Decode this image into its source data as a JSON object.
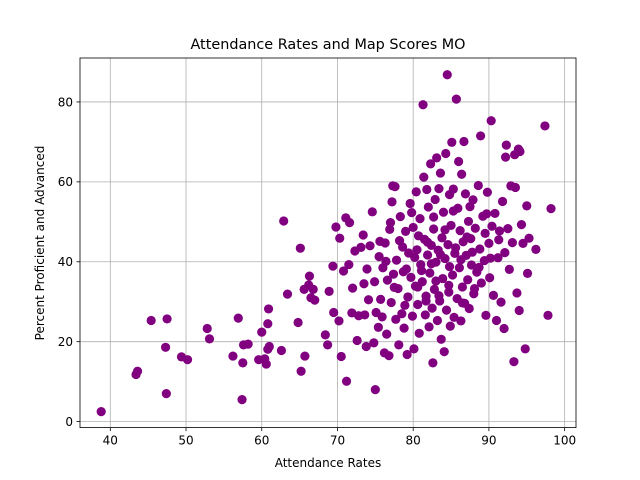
{
  "chart_data": {
    "type": "scatter",
    "title": "Attendance Rates and Map Scores MO",
    "xlabel": "Attendance Rates",
    "ylabel": "Percent Proficient and Advanced",
    "xlim": [
      36,
      101.5
    ],
    "ylim": [
      -1.5,
      91
    ],
    "xticks": [
      40,
      50,
      60,
      70,
      80,
      90,
      100
    ],
    "yticks": [
      0,
      20,
      40,
      60,
      80
    ],
    "grid": true,
    "marker_color": "#800080",
    "series": [
      {
        "points": [
          [
            38.8,
            2.5
          ],
          [
            43.4,
            11.8
          ],
          [
            43.6,
            12.6
          ],
          [
            45.4,
            25.3
          ],
          [
            47.5,
            25.7
          ],
          [
            47.3,
            18.6
          ],
          [
            47.4,
            7.0
          ],
          [
            49.4,
            16.2
          ],
          [
            50.2,
            15.5
          ],
          [
            52.8,
            23.3
          ],
          [
            53.1,
            20.7
          ],
          [
            56.2,
            16.4
          ],
          [
            56.9,
            25.9
          ],
          [
            57.5,
            14.7
          ],
          [
            57.6,
            19.2
          ],
          [
            58.2,
            19.4
          ],
          [
            57.4,
            5.5
          ],
          [
            59.6,
            15.5
          ],
          [
            60.0,
            22.4
          ],
          [
            60.4,
            15.7
          ],
          [
            60.6,
            14.4
          ],
          [
            60.8,
            18.1
          ],
          [
            60.9,
            28.2
          ],
          [
            60.8,
            24.5
          ],
          [
            61.0,
            18.8
          ],
          [
            62.6,
            17.8
          ],
          [
            62.9,
            50.2
          ],
          [
            63.4,
            31.9
          ],
          [
            64.8,
            24.8
          ],
          [
            65.1,
            43.4
          ],
          [
            65.2,
            12.6
          ],
          [
            65.6,
            33.1
          ],
          [
            65.7,
            16.4
          ],
          [
            66.2,
            34.2
          ],
          [
            66.3,
            36.4
          ],
          [
            66.5,
            31.0
          ],
          [
            66.8,
            33.1
          ],
          [
            67.0,
            30.4
          ],
          [
            68.4,
            21.7
          ],
          [
            68.7,
            19.2
          ],
          [
            68.9,
            32.6
          ],
          [
            69.4,
            38.9
          ],
          [
            69.8,
            48.7
          ],
          [
            69.5,
            27.3
          ],
          [
            70.2,
            25.2
          ],
          [
            70.3,
            45.9
          ],
          [
            70.5,
            16.3
          ],
          [
            70.8,
            37.7
          ],
          [
            71.1,
            51.0
          ],
          [
            71.2,
            10.1
          ],
          [
            71.5,
            39.3
          ],
          [
            71.6,
            49.8
          ],
          [
            71.9,
            27.2
          ],
          [
            72.0,
            33.4
          ],
          [
            72.3,
            42.7
          ],
          [
            72.6,
            20.3
          ],
          [
            72.8,
            26.5
          ],
          [
            73.1,
            43.6
          ],
          [
            73.4,
            46.7
          ],
          [
            73.5,
            34.5
          ],
          [
            73.6,
            26.7
          ],
          [
            73.8,
            18.8
          ],
          [
            73.9,
            38.2
          ],
          [
            74.1,
            30.5
          ],
          [
            74.3,
            44.0
          ],
          [
            74.6,
            52.5
          ],
          [
            74.8,
            19.7
          ],
          [
            74.9,
            35.0
          ],
          [
            75.0,
            8.0
          ],
          [
            75.1,
            27.3
          ],
          [
            75.4,
            23.6
          ],
          [
            75.5,
            41.3
          ],
          [
            75.7,
            30.6
          ],
          [
            75.9,
            26.2
          ],
          [
            76.0,
            38.5
          ],
          [
            76.2,
            17.2
          ],
          [
            76.3,
            44.7
          ],
          [
            76.5,
            21.9
          ],
          [
            76.6,
            35.4
          ],
          [
            76.8,
            16.5
          ],
          [
            77.0,
            49.8
          ],
          [
            77.1,
            29.8
          ],
          [
            77.2,
            55.0
          ],
          [
            77.3,
            59.0
          ],
          [
            77.6,
            58.8
          ],
          [
            77.7,
            25.6
          ],
          [
            77.8,
            40.4
          ],
          [
            78.0,
            33.3
          ],
          [
            78.1,
            19.2
          ],
          [
            78.2,
            45.3
          ],
          [
            78.3,
            51.3
          ],
          [
            78.5,
            27.0
          ],
          [
            78.7,
            37.5
          ],
          [
            78.8,
            23.4
          ],
          [
            79.0,
            47.6
          ],
          [
            79.2,
            16.8
          ],
          [
            79.3,
            31.2
          ],
          [
            79.4,
            42.2
          ],
          [
            79.6,
            54.6
          ],
          [
            79.7,
            36.1
          ],
          [
            79.9,
            26.4
          ],
          [
            80.0,
            48.6
          ],
          [
            80.1,
            18.2
          ],
          [
            80.3,
            33.9
          ],
          [
            80.4,
            57.5
          ],
          [
            80.5,
            43.0
          ],
          [
            80.6,
            29.3
          ],
          [
            80.8,
            22.1
          ],
          [
            80.9,
            50.8
          ],
          [
            81.0,
            39.3
          ],
          [
            81.2,
            35.0
          ],
          [
            81.3,
            79.3
          ],
          [
            81.4,
            61.2
          ],
          [
            81.5,
            45.6
          ],
          [
            81.6,
            26.7
          ],
          [
            81.7,
            31.4
          ],
          [
            81.8,
            58.1
          ],
          [
            81.9,
            41.7
          ],
          [
            82.0,
            53.7
          ],
          [
            82.1,
            23.7
          ],
          [
            82.2,
            37.2
          ],
          [
            82.3,
            64.5
          ],
          [
            82.4,
            44.1
          ],
          [
            82.5,
            28.4
          ],
          [
            82.6,
            14.7
          ],
          [
            82.7,
            48.2
          ],
          [
            82.8,
            33.1
          ],
          [
            82.9,
            55.6
          ],
          [
            83.0,
            39.9
          ],
          [
            83.1,
            66.0
          ],
          [
            83.2,
            25.3
          ],
          [
            83.3,
            42.9
          ],
          [
            83.4,
            58.3
          ],
          [
            83.5,
            30.2
          ],
          [
            83.6,
            62.2
          ],
          [
            83.7,
            20.6
          ],
          [
            83.8,
            46.0
          ],
          [
            83.9,
            35.8
          ],
          [
            84.0,
            52.4
          ],
          [
            84.1,
            17.5
          ],
          [
            84.2,
            40.8
          ],
          [
            84.3,
            67.1
          ],
          [
            84.4,
            27.9
          ],
          [
            84.5,
            86.8
          ],
          [
            84.6,
            44.3
          ],
          [
            84.7,
            32.4
          ],
          [
            84.8,
            56.8
          ],
          [
            84.9,
            23.9
          ],
          [
            85.0,
            49.1
          ],
          [
            85.1,
            69.9
          ],
          [
            85.2,
            36.7
          ],
          [
            85.3,
            58.2
          ],
          [
            85.4,
            26.1
          ],
          [
            85.5,
            42.1
          ],
          [
            85.7,
            80.7
          ],
          [
            85.8,
            30.8
          ],
          [
            85.9,
            53.4
          ],
          [
            86.0,
            65.1
          ],
          [
            86.1,
            38.5
          ],
          [
            86.2,
            47.8
          ],
          [
            86.3,
            25.2
          ],
          [
            86.4,
            61.9
          ],
          [
            86.5,
            33.7
          ],
          [
            86.6,
            45.0
          ],
          [
            86.7,
            70.1
          ],
          [
            86.8,
            29.6
          ],
          [
            86.9,
            57.0
          ],
          [
            87.0,
            41.6
          ],
          [
            87.2,
            35.5
          ],
          [
            87.3,
            50.1
          ],
          [
            87.4,
            28.3
          ],
          [
            87.6,
            45.8
          ],
          [
            87.7,
            39.2
          ],
          [
            87.9,
            55.5
          ],
          [
            88.0,
            32.0
          ],
          [
            88.2,
            48.4
          ],
          [
            88.4,
            37.4
          ],
          [
            88.6,
            59.1
          ],
          [
            88.8,
            43.2
          ],
          [
            88.9,
            71.5
          ],
          [
            89.0,
            34.7
          ],
          [
            89.2,
            51.4
          ],
          [
            89.4,
            40.3
          ],
          [
            89.6,
            26.6
          ],
          [
            89.8,
            57.4
          ],
          [
            90.0,
            44.6
          ],
          [
            90.1,
            36.0
          ],
          [
            90.3,
            75.3
          ],
          [
            90.4,
            48.9
          ],
          [
            90.6,
            31.6
          ],
          [
            90.8,
            52.1
          ],
          [
            91.0,
            25.3
          ],
          [
            91.2,
            41.0
          ],
          [
            91.4,
            47.7
          ],
          [
            91.6,
            29.9
          ],
          [
            91.8,
            55.1
          ],
          [
            92.0,
            23.3
          ],
          [
            92.2,
            66.2
          ],
          [
            92.3,
            69.2
          ],
          [
            92.5,
            48.3
          ],
          [
            92.7,
            38.1
          ],
          [
            92.9,
            59.0
          ],
          [
            93.1,
            44.8
          ],
          [
            93.3,
            15.0
          ],
          [
            93.4,
            66.8
          ],
          [
            93.5,
            58.6
          ],
          [
            93.7,
            32.2
          ],
          [
            93.9,
            68.2
          ],
          [
            94.0,
            27.8
          ],
          [
            94.1,
            67.6
          ],
          [
            94.3,
            49.3
          ],
          [
            94.5,
            44.6
          ],
          [
            94.8,
            18.2
          ],
          [
            95.0,
            54.0
          ],
          [
            95.1,
            37.1
          ],
          [
            95.3,
            45.9
          ],
          [
            96.2,
            43.1
          ],
          [
            97.4,
            74.0
          ],
          [
            97.8,
            26.6
          ],
          [
            98.2,
            53.3
          ],
          [
            76.4,
            40.1
          ],
          [
            77.4,
            36.9
          ],
          [
            78.6,
            43.7
          ],
          [
            79.1,
            38.2
          ],
          [
            80.2,
            41.1
          ],
          [
            80.7,
            46.5
          ],
          [
            81.1,
            37.8
          ],
          [
            81.9,
            44.9
          ],
          [
            82.4,
            39.5
          ],
          [
            83.0,
            35.2
          ],
          [
            83.6,
            41.8
          ],
          [
            84.2,
            48.0
          ],
          [
            84.8,
            38.8
          ],
          [
            85.6,
            43.5
          ],
          [
            86.3,
            40.5
          ],
          [
            87.1,
            46.2
          ],
          [
            87.8,
            42.4
          ],
          [
            88.7,
            38.6
          ],
          [
            89.5,
            47.1
          ],
          [
            90.2,
            40.9
          ],
          [
            91.3,
            45.5
          ],
          [
            92.1,
            42.3
          ],
          [
            80.6,
            33.7
          ],
          [
            81.7,
            30.2
          ],
          [
            83.4,
            31.5
          ],
          [
            84.7,
            34.1
          ],
          [
            86.5,
            29.7
          ],
          [
            88.1,
            33.3
          ],
          [
            78.9,
            29.1
          ],
          [
            77.5,
            33.6
          ],
          [
            79.8,
            52.3
          ],
          [
            82.7,
            51.2
          ],
          [
            85.3,
            52.7
          ],
          [
            87.5,
            53.8
          ],
          [
            89.7,
            52.0
          ],
          [
            76.9,
            48.1
          ],
          [
            75.6,
            45.1
          ]
        ]
      }
    ]
  }
}
